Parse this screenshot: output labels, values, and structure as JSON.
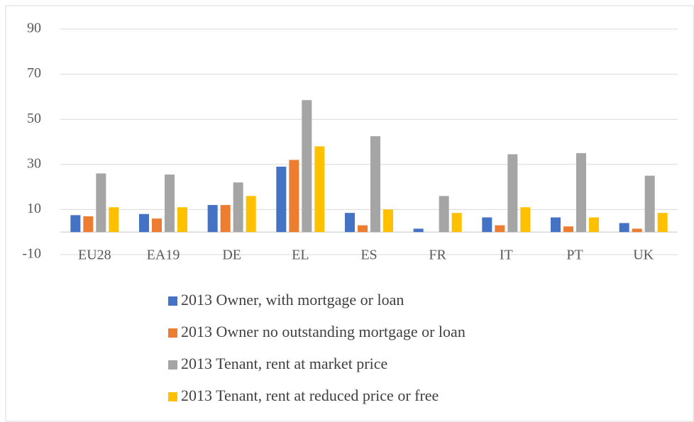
{
  "chart_data": {
    "type": "bar",
    "categories": [
      "EU28",
      "EA19",
      "DE",
      "EL",
      "ES",
      "FR",
      "IT",
      "PT",
      "UK"
    ],
    "series": [
      {
        "name": "2013 Owner, with mortgage or loan",
        "color": "#4472c4",
        "values": [
          7.5,
          8,
          12,
          29,
          8.5,
          1.5,
          6.5,
          6.5,
          4
        ]
      },
      {
        "name": "2013 Owner no outstanding mortgage or loan",
        "color": "#ed7d31",
        "values": [
          7,
          6,
          12,
          32,
          3,
          0,
          3,
          2.5,
          1.5
        ]
      },
      {
        "name": "2013 Tenant, rent at market price",
        "color": "#a5a5a5",
        "values": [
          26,
          25.5,
          22,
          58.5,
          42.5,
          16,
          34.5,
          35,
          25
        ]
      },
      {
        "name": "2013 Tenant, rent at reduced price or free",
        "color": "#ffc000",
        "values": [
          11,
          11,
          16,
          38,
          10,
          8.5,
          11,
          6.5,
          8.5
        ]
      }
    ],
    "ylim": [
      -10,
      90
    ],
    "yticks": [
      -10,
      10,
      30,
      50,
      70,
      90
    ],
    "grid": true,
    "legend": "bottom"
  }
}
